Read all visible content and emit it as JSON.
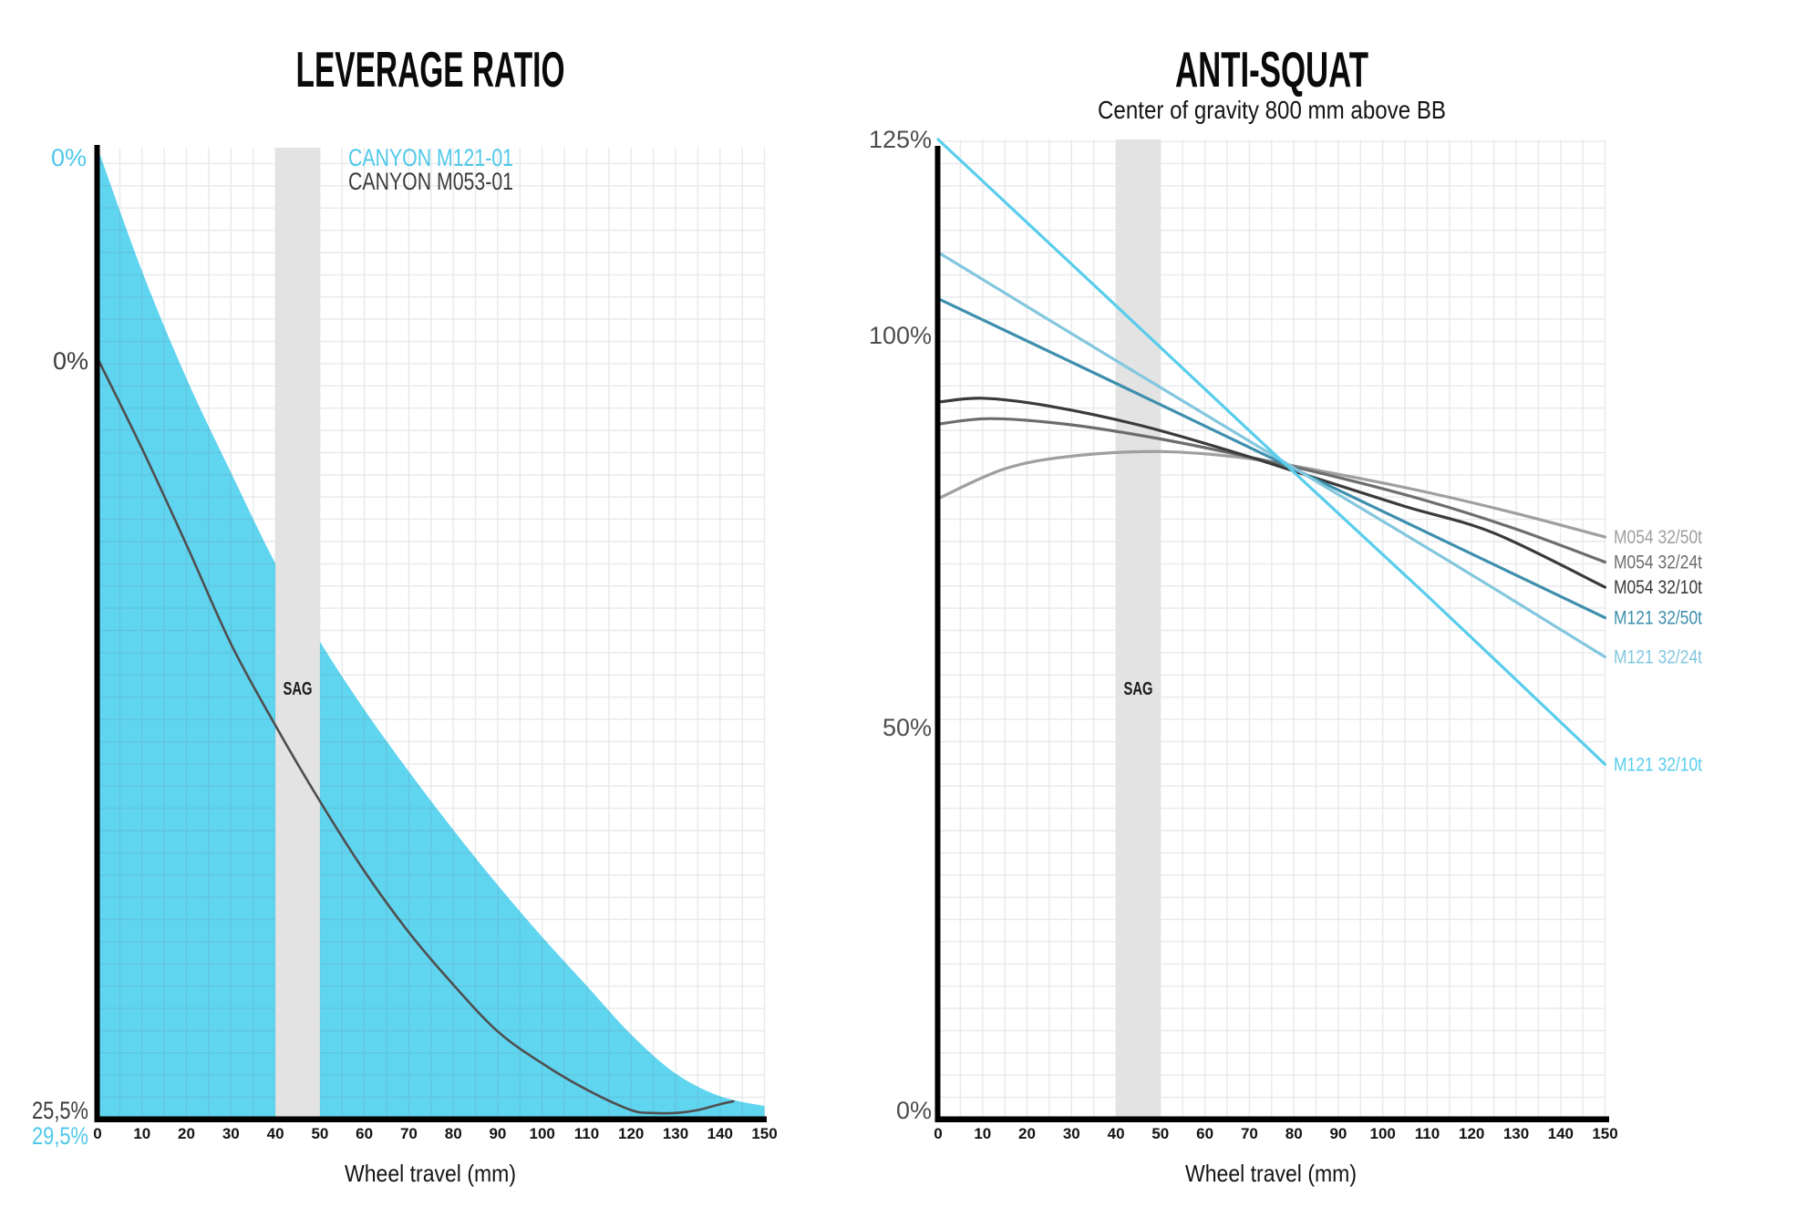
{
  "palette": {
    "accent_cyan": "#50C8EA",
    "area_cyan": "#60D5F0",
    "dark_line": "#4F4F4F",
    "dark_text": "#3B3B3B",
    "gray_axis_text": "#4D4D4D",
    "sag_band": "#E3E3E3",
    "axis_black": "#000000"
  },
  "chart_data": [
    {
      "id": "leverage",
      "type": "area",
      "title": "LEVERAGE RATIO",
      "xlabel": "Wheel travel (mm)",
      "x_ticks": [
        0,
        10,
        20,
        30,
        40,
        50,
        60,
        70,
        80,
        90,
        100,
        110,
        120,
        130,
        140,
        150
      ],
      "x_range": [
        0,
        150
      ],
      "grid": true,
      "sag_band_mm": [
        40,
        50
      ],
      "sag_label": "SAG",
      "series": [
        {
          "name": "CANYON M121-01",
          "color": "#50C8EA",
          "fill": "#60D5F0",
          "style": "filled-area",
          "start_label": "0%",
          "end_label": "29,5%",
          "final_percent": 29.5,
          "points_mm_percent": [
            [
              0,
              0
            ],
            [
              10,
              3.8
            ],
            [
              20,
              7.1
            ],
            [
              30,
              10.0
            ],
            [
              40,
              12.8
            ],
            [
              50,
              15.2
            ],
            [
              60,
              17.3
            ],
            [
              70,
              19.2
            ],
            [
              80,
              21.0
            ],
            [
              90,
              22.7
            ],
            [
              100,
              24.3
            ],
            [
              110,
              25.8
            ],
            [
              120,
              27.3
            ],
            [
              130,
              28.5
            ],
            [
              140,
              29.2
            ],
            [
              150,
              29.5
            ]
          ]
        },
        {
          "name": "CANYON M053-01",
          "color": "#4F4F4F",
          "style": "line",
          "start_label": "0%",
          "end_label": "25,5%",
          "final_percent": 25.5,
          "points_mm_percent": [
            [
              0,
              0
            ],
            [
              10,
              3.1
            ],
            [
              20,
              6.4
            ],
            [
              30,
              9.8
            ],
            [
              40,
              12.6
            ],
            [
              50,
              15.2
            ],
            [
              60,
              17.6
            ],
            [
              70,
              19.7
            ],
            [
              80,
              21.5
            ],
            [
              90,
              23.1
            ],
            [
              100,
              24.2
            ],
            [
              110,
              25.1
            ],
            [
              120,
              25.8
            ],
            [
              125,
              25.9
            ],
            [
              130,
              25.9
            ],
            [
              135,
              25.8
            ],
            [
              140,
              25.6
            ],
            [
              143,
              25.5
            ]
          ]
        }
      ]
    },
    {
      "id": "antisquat",
      "type": "line",
      "title": "ANTI-SQUAT",
      "subtitle": "Center of gravity 800 mm above BB",
      "xlabel": "Wheel travel (mm)",
      "x_ticks": [
        0,
        10,
        20,
        30,
        40,
        50,
        60,
        70,
        80,
        90,
        100,
        110,
        120,
        130,
        140,
        150
      ],
      "x_range": [
        0,
        150
      ],
      "ylim": [
        0,
        125
      ],
      "grid": true,
      "y_ticks": [
        {
          "label": "125%",
          "value": 125
        },
        {
          "label": "100%",
          "value": 100
        },
        {
          "label": "50%",
          "value": 50
        },
        {
          "label": "0%",
          "value": 0
        }
      ],
      "sag_band_mm": [
        40,
        50
      ],
      "sag_label": "SAG",
      "series": [
        {
          "name": "M054 32/50t",
          "color": "#9F9F9F",
          "points_mm_percent": [
            [
              0,
              79.2
            ],
            [
              15,
              83.0
            ],
            [
              30,
              84.6
            ],
            [
              50,
              85.2
            ],
            [
              70,
              84.3
            ],
            [
              90,
              82.3
            ],
            [
              110,
              80.0
            ],
            [
              130,
              77.3
            ],
            [
              150,
              74.3
            ]
          ]
        },
        {
          "name": "M054 32/24t",
          "color": "#6D6D6D",
          "points_mm_percent": [
            [
              0,
              88.7
            ],
            [
              12,
              89.4
            ],
            [
              30,
              88.6
            ],
            [
              50,
              86.8
            ],
            [
              70,
              84.5
            ],
            [
              90,
              81.9
            ],
            [
              110,
              78.9
            ],
            [
              130,
              75.3
            ],
            [
              150,
              71.1
            ]
          ]
        },
        {
          "name": "M054 32/10t",
          "color": "#3A3A3A",
          "points_mm_percent": [
            [
              0,
              91.5
            ],
            [
              10,
              92.0
            ],
            [
              25,
              91.0
            ],
            [
              45,
              88.6
            ],
            [
              65,
              85.4
            ],
            [
              85,
              81.8
            ],
            [
              105,
              78.2
            ],
            [
              125,
              74.8
            ],
            [
              150,
              67.9
            ]
          ]
        },
        {
          "name": "M121 32/50t",
          "color": "#3E8FAD",
          "points_mm_percent": [
            [
              0,
              104.7
            ],
            [
              40,
              93.9
            ],
            [
              80,
              83.0
            ],
            [
              115,
              73.5
            ],
            [
              150,
              64.0
            ]
          ]
        },
        {
          "name": "M121 32/24t",
          "color": "#83C7DE",
          "points_mm_percent": [
            [
              0,
              110.6
            ],
            [
              40,
              96.8
            ],
            [
              80,
              83.1
            ],
            [
              115,
              71.2
            ],
            [
              150,
              59.0
            ]
          ]
        },
        {
          "name": "M121 32/10t",
          "color": "#58CDEC",
          "points_mm_percent": [
            [
              0,
              125.0
            ],
            [
              40,
              103.8
            ],
            [
              75,
              85.2
            ],
            [
              110,
              66.8
            ],
            [
              150,
              45.3
            ]
          ]
        }
      ]
    }
  ]
}
